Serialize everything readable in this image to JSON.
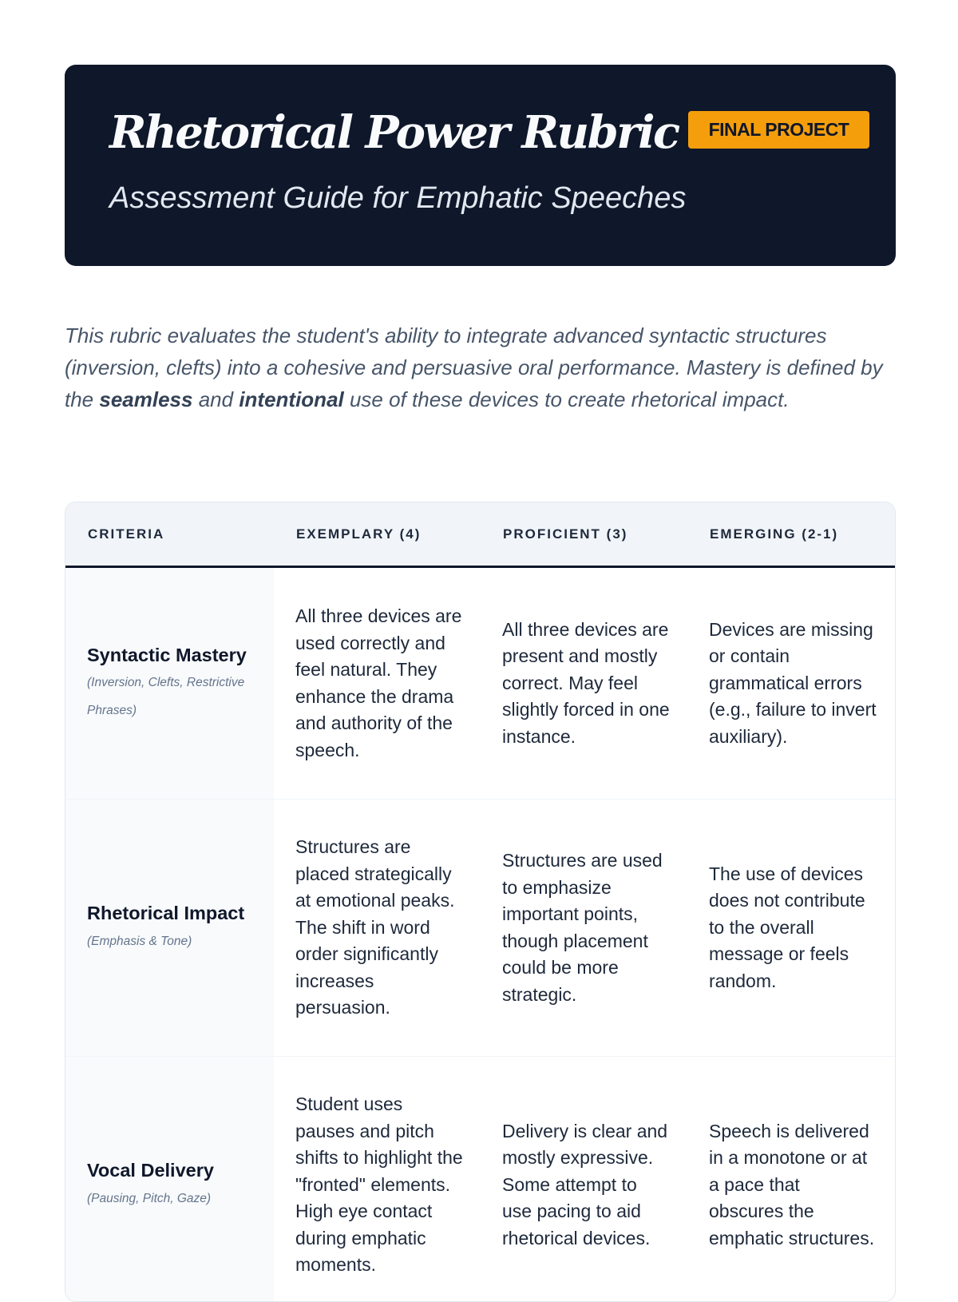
{
  "header": {
    "title": "Rhetorical Power Rubric",
    "badge": "FINAL PROJECT",
    "subtitle": "Assessment Guide for Emphatic Speeches",
    "background_color": "#0f172a",
    "badge_color": "#f59e0b"
  },
  "intro": {
    "part1": "This rubric evaluates the student's ability to integrate advanced syntactic structures (inversion, clefts) into a cohesive and persuasive oral performance. Mastery is defined by the ",
    "bold1": "seamless",
    "part2": " and ",
    "bold2": "intentional",
    "part3": " use of these devices to create rhetorical impact."
  },
  "table": {
    "headers": [
      "CRITERIA",
      "EXEMPLARY (4)",
      "PROFICIENT (3)",
      "EMERGING (2-1)"
    ],
    "rows": [
      {
        "criterion": "Syntactic Mastery",
        "sub": "(Inversion, Clefts, Restrictive Phrases)",
        "exemplary": "All three devices are used correctly and feel natural. They enhance the drama and authority of the speech.",
        "proficient": "All three devices are present and mostly correct. May feel slightly forced in one instance.",
        "emerging": "Devices are missing or contain grammatical errors (e.g., failure to invert auxiliary)."
      },
      {
        "criterion": "Rhetorical Impact",
        "sub": "(Emphasis & Tone)",
        "exemplary": "Structures are placed strategically at emotional peaks. The shift in word order significantly increases persuasion.",
        "proficient": "Structures are used to emphasize important points, though placement could be more strategic.",
        "emerging": "The use of devices does not contribute to the overall message or feels random."
      },
      {
        "criterion": "Vocal Delivery",
        "sub": "(Pausing, Pitch, Gaze)",
        "exemplary": "Student uses pauses and pitch shifts to highlight the \"fronted\" elements. High eye contact during emphatic moments.",
        "proficient": "Delivery is clear and mostly expressive. Some attempt to use pacing to aid rhetorical devices.",
        "emerging": "Speech is delivered in a monotone or at a pace that obscures the emphatic structures."
      }
    ]
  }
}
